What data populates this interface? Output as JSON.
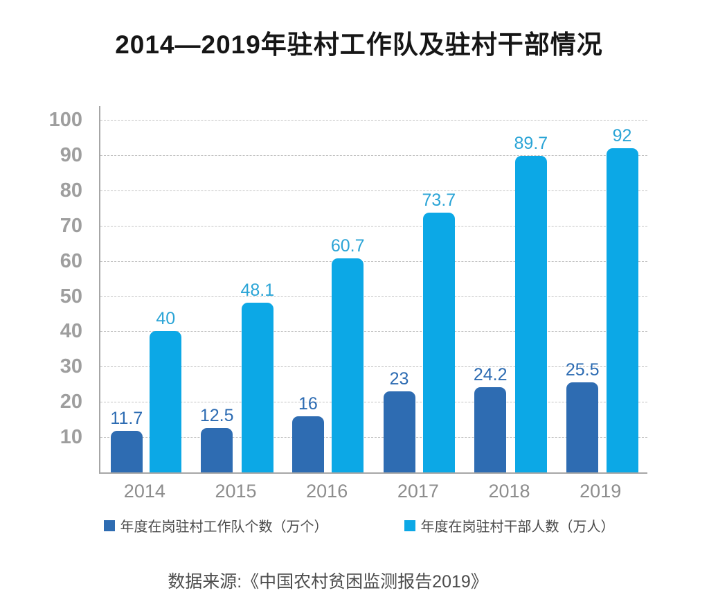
{
  "title": "2014—2019年驻村工作队及驻村干部情况",
  "source": "数据来源:《中国农村贫困监测报告2019》",
  "colors": {
    "series_dark": "#2E6CB2",
    "series_light": "#0CA8E6",
    "dark_value_label": "#2C6BB2",
    "light_value_label": "#2AA4D6",
    "axis_line": "#A6A6A6",
    "gridline": "#C2C2C2",
    "y_tick_text": "#9E9E9E",
    "x_tick_text": "#8D8D8D",
    "legend_text": "#4A4A4A",
    "title_text": "#161616",
    "source_text": "#4C4C4C",
    "background": "#FFFFFF"
  },
  "chart_data": {
    "type": "bar",
    "title": "2014—2019年驻村工作队及驻村干部情况",
    "categories": [
      "2014",
      "2015",
      "2016",
      "2017",
      "2018",
      "2019"
    ],
    "series": [
      {
        "name": "年度在岗驻村工作队个数（万个）",
        "color": "#2E6CB2",
        "label_color": "#2C6BB2",
        "values": [
          11.7,
          12.5,
          16,
          23,
          24.2,
          25.5
        ]
      },
      {
        "name": "年度在岗驻村干部人数（万人）",
        "color": "#0CA8E6",
        "label_color": "#2AA4D6",
        "values": [
          40,
          48.1,
          60.7,
          73.7,
          89.7,
          92
        ]
      }
    ],
    "xlabel": "",
    "ylabel": "",
    "ylim": [
      0,
      100
    ],
    "yticks": [
      10,
      20,
      30,
      40,
      50,
      60,
      70,
      80,
      90,
      100
    ],
    "grid": "horizontal-dashed",
    "bar_value_labels": true,
    "legend_position": "bottom",
    "source": "数据来源:《中国农村贫困监测报告2019》"
  }
}
